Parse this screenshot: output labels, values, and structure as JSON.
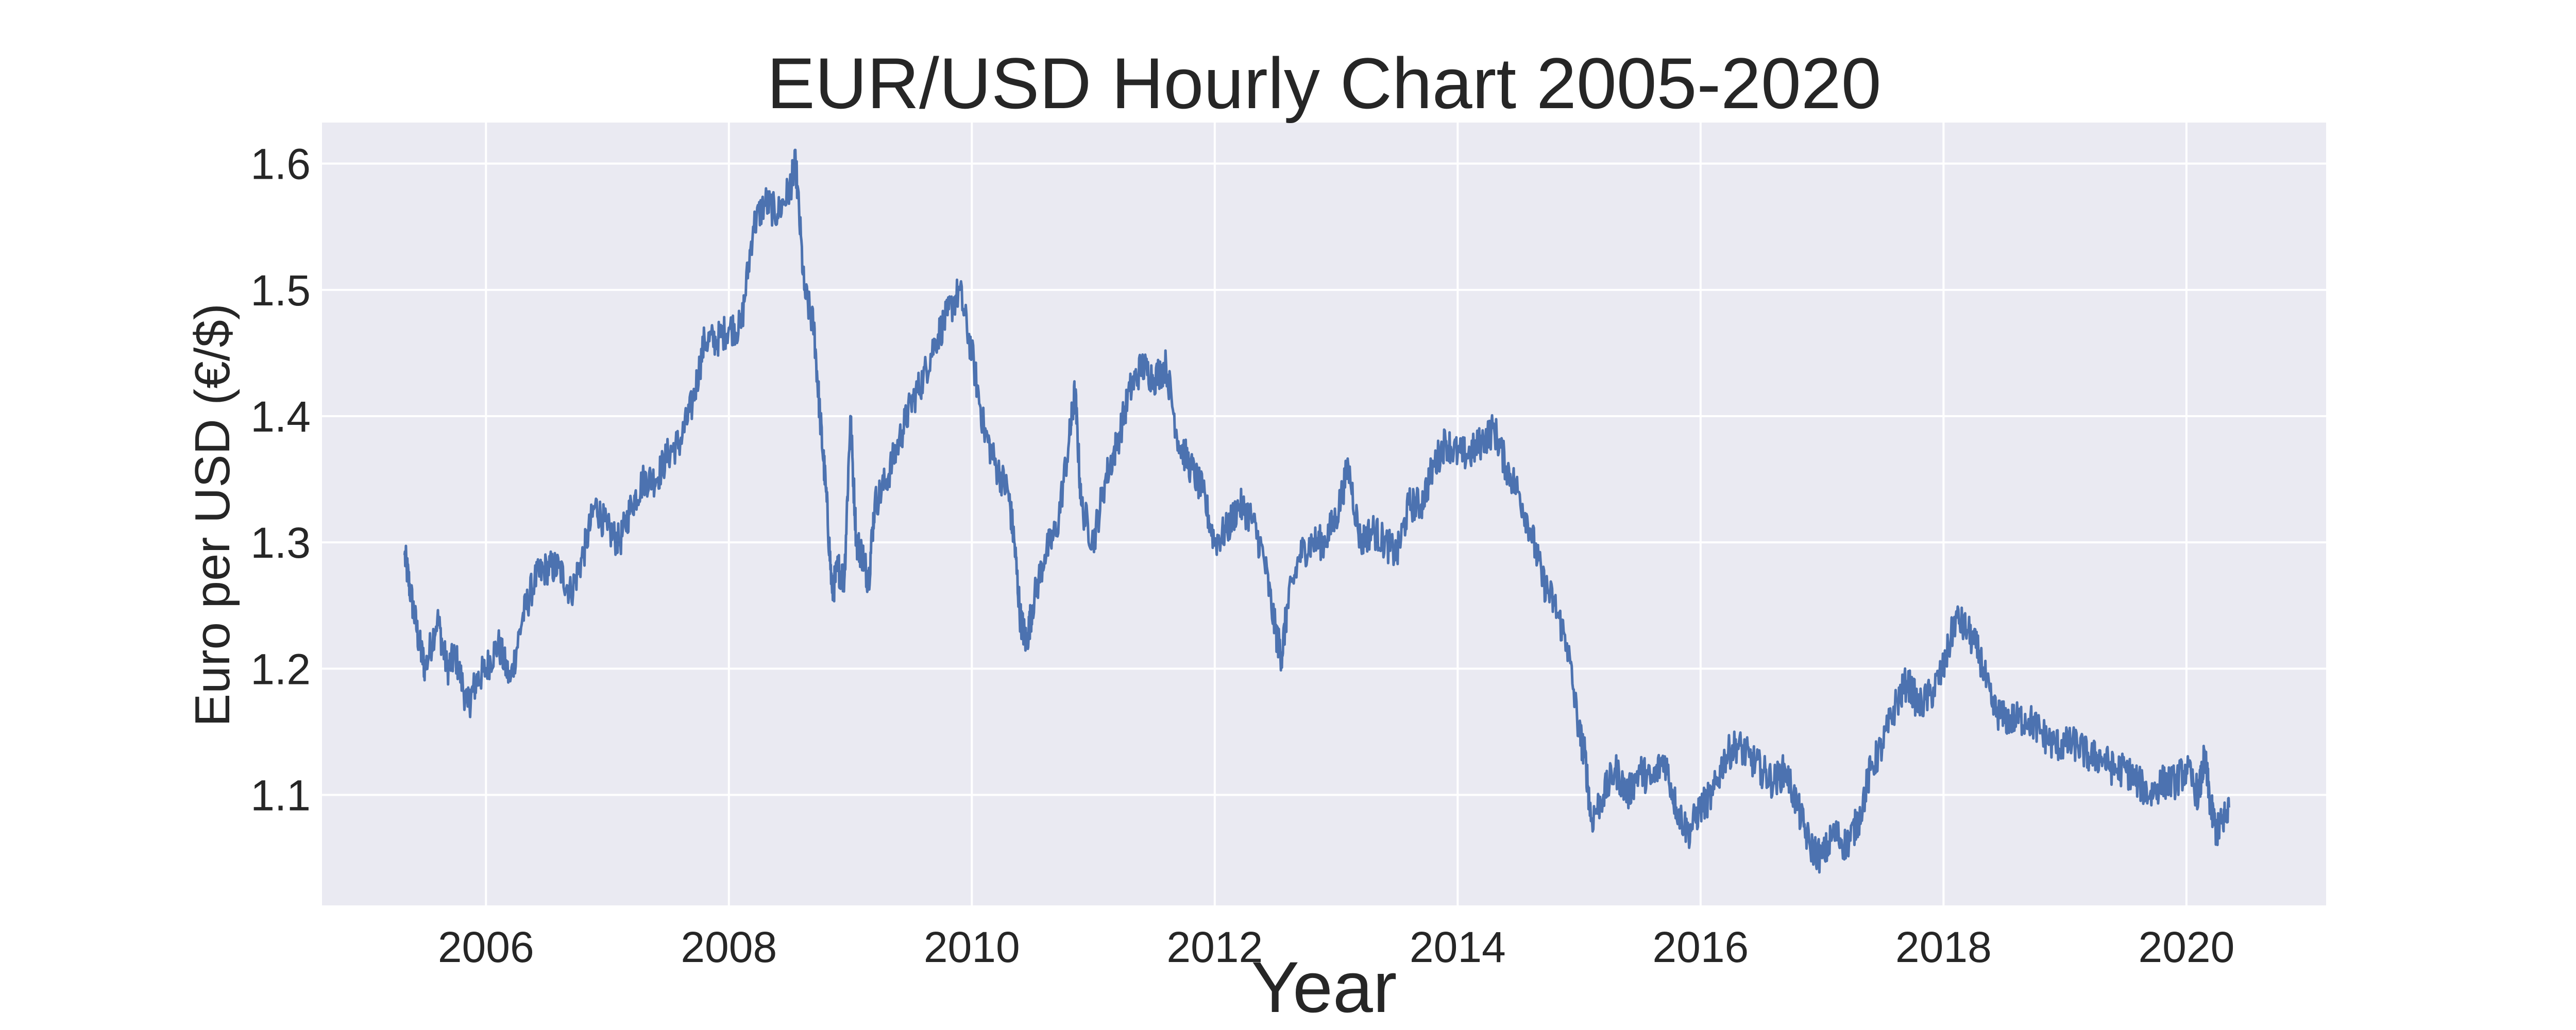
{
  "chart_data": {
    "type": "line",
    "title": "EUR/USD Hourly Chart 2005-2020",
    "xlabel": "Year",
    "ylabel": "Euro per USD (€/$)",
    "xlim": [
      2004.65,
      2021.15
    ],
    "ylim": [
      1.0125,
      1.6325
    ],
    "x_ticks": [
      2006,
      2008,
      2010,
      2012,
      2014,
      2016,
      2018,
      2020
    ],
    "x_tick_labels": [
      "2006",
      "2008",
      "2010",
      "2012",
      "2014",
      "2016",
      "2018",
      "2020"
    ],
    "y_ticks": [
      1.1,
      1.2,
      1.3,
      1.4,
      1.5,
      1.6
    ],
    "y_tick_labels": [
      "1.1",
      "1.2",
      "1.3",
      "1.4",
      "1.5",
      "1.6"
    ],
    "grid": true,
    "colors": {
      "background": "#eaeaf2",
      "grid": "#ffffff",
      "series": "#4c72b0"
    },
    "series": [
      {
        "x": [
          2005.33,
          2005.38,
          2005.45,
          2005.5,
          2005.6,
          2005.68,
          2005.75,
          2005.85,
          2005.92,
          2006.0,
          2006.1,
          2006.2,
          2006.3,
          2006.4,
          2006.5,
          2006.6,
          2006.7,
          2006.8,
          2006.9,
          2007.0,
          2007.1,
          2007.2,
          2007.3,
          2007.4,
          2007.5,
          2007.6,
          2007.7,
          2007.8,
          2007.9,
          2008.0,
          2008.1,
          2008.2,
          2008.3,
          2008.4,
          2008.5,
          2008.55,
          2008.62,
          2008.7,
          2008.75,
          2008.8,
          2008.85,
          2008.9,
          2008.95,
          2009.0,
          2009.05,
          2009.1,
          2009.15,
          2009.2,
          2009.3,
          2009.4,
          2009.5,
          2009.6,
          2009.7,
          2009.8,
          2009.9,
          2010.0,
          2010.1,
          2010.2,
          2010.3,
          2010.35,
          2010.4,
          2010.45,
          2010.5,
          2010.6,
          2010.7,
          2010.8,
          2010.85,
          2010.9,
          2011.0,
          2011.1,
          2011.2,
          2011.3,
          2011.4,
          2011.5,
          2011.6,
          2011.7,
          2011.8,
          2011.9,
          2012.0,
          2012.1,
          2012.2,
          2012.3,
          2012.4,
          2012.5,
          2012.55,
          2012.6,
          2012.7,
          2012.8,
          2012.9,
          2013.0,
          2013.1,
          2013.2,
          2013.3,
          2013.4,
          2013.5,
          2013.6,
          2013.7,
          2013.8,
          2013.9,
          2014.0,
          2014.1,
          2014.2,
          2014.3,
          2014.4,
          2014.5,
          2014.6,
          2014.7,
          2014.8,
          2014.9,
          2015.0,
          2015.05,
          2015.1,
          2015.2,
          2015.3,
          2015.4,
          2015.5,
          2015.6,
          2015.7,
          2015.8,
          2015.9,
          2016.0,
          2016.1,
          2016.2,
          2016.3,
          2016.4,
          2016.5,
          2016.6,
          2016.7,
          2016.8,
          2016.9,
          2017.0,
          2017.1,
          2017.2,
          2017.3,
          2017.4,
          2017.5,
          2017.6,
          2017.7,
          2017.8,
          2017.9,
          2018.0,
          2018.1,
          2018.2,
          2018.3,
          2018.4,
          2018.5,
          2018.6,
          2018.7,
          2018.8,
          2018.9,
          2019.0,
          2019.1,
          2019.2,
          2019.3,
          2019.4,
          2019.5,
          2019.6,
          2019.7,
          2019.8,
          2019.9,
          2020.0,
          2020.1,
          2020.15,
          2020.2,
          2020.25,
          2020.3,
          2020.35
        ],
        "values": [
          1.29,
          1.26,
          1.22,
          1.2,
          1.24,
          1.2,
          1.21,
          1.17,
          1.19,
          1.2,
          1.22,
          1.19,
          1.24,
          1.27,
          1.28,
          1.28,
          1.26,
          1.29,
          1.33,
          1.31,
          1.3,
          1.33,
          1.35,
          1.35,
          1.37,
          1.38,
          1.41,
          1.46,
          1.46,
          1.47,
          1.47,
          1.55,
          1.57,
          1.56,
          1.58,
          1.6,
          1.5,
          1.47,
          1.4,
          1.34,
          1.26,
          1.28,
          1.27,
          1.4,
          1.3,
          1.29,
          1.27,
          1.33,
          1.35,
          1.38,
          1.41,
          1.43,
          1.46,
          1.48,
          1.5,
          1.45,
          1.39,
          1.36,
          1.34,
          1.3,
          1.24,
          1.22,
          1.25,
          1.29,
          1.31,
          1.38,
          1.42,
          1.33,
          1.3,
          1.35,
          1.38,
          1.42,
          1.44,
          1.43,
          1.44,
          1.38,
          1.36,
          1.34,
          1.3,
          1.31,
          1.33,
          1.32,
          1.29,
          1.23,
          1.21,
          1.25,
          1.29,
          1.3,
          1.3,
          1.32,
          1.36,
          1.3,
          1.31,
          1.3,
          1.29,
          1.33,
          1.33,
          1.36,
          1.38,
          1.37,
          1.37,
          1.38,
          1.39,
          1.36,
          1.34,
          1.31,
          1.27,
          1.25,
          1.22,
          1.15,
          1.13,
          1.08,
          1.1,
          1.12,
          1.1,
          1.12,
          1.11,
          1.13,
          1.09,
          1.07,
          1.09,
          1.1,
          1.13,
          1.14,
          1.13,
          1.12,
          1.11,
          1.12,
          1.09,
          1.06,
          1.05,
          1.07,
          1.06,
          1.08,
          1.12,
          1.14,
          1.17,
          1.19,
          1.17,
          1.18,
          1.2,
          1.24,
          1.23,
          1.21,
          1.17,
          1.16,
          1.16,
          1.16,
          1.15,
          1.14,
          1.14,
          1.14,
          1.13,
          1.13,
          1.12,
          1.12,
          1.11,
          1.1,
          1.11,
          1.11,
          1.12,
          1.1,
          1.13,
          1.09,
          1.07,
          1.08,
          1.09
        ]
      }
    ]
  }
}
